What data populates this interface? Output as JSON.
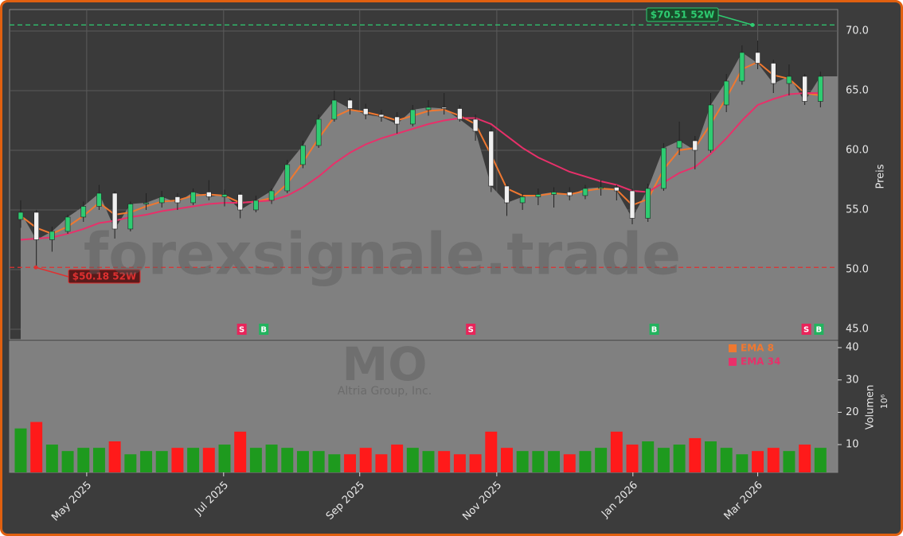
{
  "chart_data": [
    {
      "type": "candlestick",
      "watermark": "forexsignale.trade",
      "categories": [
        null,
        null,
        null,
        null,
        null,
        null,
        null,
        null,
        null,
        null,
        null,
        null,
        null,
        null,
        null,
        null,
        null,
        null,
        null,
        null,
        null,
        null,
        null,
        null,
        null,
        null,
        null,
        null,
        null,
        null,
        null,
        null,
        null,
        null,
        null,
        null,
        null,
        null,
        null,
        null,
        null,
        null,
        null,
        null,
        null,
        null,
        null,
        null,
        null,
        null,
        null,
        null
      ],
      "xlim": [
        -0.71,
        52.1
      ],
      "open": [
        54.2,
        54.8,
        52.5,
        53.2,
        54.4,
        55.3,
        56.4,
        53.4,
        55.5,
        55.6,
        56.1,
        55.6,
        56.5,
        56.1,
        56.3,
        55.0,
        55.8,
        56.6,
        58.8,
        60.4,
        62.6,
        64.2,
        63.5,
        63.0,
        62.8,
        62.2,
        63.4,
        63.6,
        63.5,
        62.6,
        61.6,
        57.0,
        55.6,
        56.1,
        56.3,
        56.5,
        56.2,
        56.8,
        56.9,
        56.6,
        54.3,
        56.8,
        60.2,
        60.8,
        60.0,
        63.8,
        65.8,
        68.2,
        67.3,
        65.6,
        66.2,
        64.1
      ],
      "high": [
        55.8,
        55.0,
        53.6,
        54.6,
        55.7,
        57.1,
        56.6,
        55.7,
        56.4,
        56.6,
        56.4,
        56.8,
        57.5,
        56.7,
        56.5,
        56.2,
        56.8,
        59.2,
        60.8,
        63.0,
        65.0,
        64.4,
        63.9,
        63.4,
        63.2,
        63.8,
        64.2,
        64.8,
        63.8,
        63.0,
        62.0,
        57.2,
        56.4,
        56.8,
        56.9,
        56.9,
        57.1,
        57.5,
        57.1,
        56.8,
        57.2,
        60.6,
        62.4,
        61.2,
        64.8,
        66.4,
        68.8,
        69.2,
        67.6,
        67.2,
        66.4,
        66.6
      ],
      "low": [
        53.5,
        50.2,
        51.5,
        53.0,
        54.0,
        55.0,
        52.6,
        53.2,
        55.0,
        55.2,
        55.0,
        55.4,
        55.8,
        55.3,
        54.3,
        54.8,
        55.5,
        56.4,
        58.5,
        60.2,
        62.4,
        63.0,
        62.6,
        62.4,
        61.4,
        62.0,
        62.9,
        63.0,
        62.4,
        60.8,
        56.5,
        54.5,
        55.0,
        55.4,
        55.2,
        55.8,
        55.9,
        56.2,
        55.8,
        53.8,
        54.0,
        56.6,
        59.6,
        58.4,
        59.8,
        63.2,
        65.5,
        66.8,
        64.8,
        64.6,
        63.8,
        63.6
      ],
      "close": [
        54.8,
        52.5,
        53.2,
        54.4,
        55.3,
        56.4,
        53.4,
        55.5,
        55.6,
        56.1,
        55.6,
        56.5,
        56.1,
        56.3,
        55.0,
        55.8,
        56.6,
        58.8,
        60.4,
        62.6,
        64.2,
        63.5,
        63.0,
        62.8,
        62.2,
        63.4,
        63.6,
        63.5,
        62.6,
        61.6,
        57.0,
        55.6,
        56.1,
        56.3,
        56.5,
        56.2,
        56.8,
        56.9,
        56.6,
        54.3,
        56.8,
        60.2,
        60.8,
        60.0,
        63.8,
        65.8,
        68.2,
        67.3,
        65.6,
        66.2,
        64.1,
        66.2
      ],
      "up_color": "#2ecc71",
      "down_color": "#f0f0f0",
      "area_color": "#808080",
      "series": [
        {
          "name": "EMA 8",
          "color": "#f07830",
          "values": [
            54.5,
            53.5,
            53.0,
            53.6,
            54.5,
            55.6,
            54.6,
            54.8,
            55.3,
            55.7,
            55.8,
            56.2,
            56.3,
            56.2,
            55.6,
            55.7,
            56.0,
            57.2,
            59.0,
            61.0,
            62.8,
            63.4,
            63.2,
            62.9,
            62.5,
            62.9,
            63.3,
            63.4,
            62.9,
            62.2,
            59.6,
            56.8,
            56.2,
            56.2,
            56.4,
            56.3,
            56.6,
            56.8,
            56.7,
            55.4,
            55.9,
            58.4,
            60.0,
            60.2,
            62.2,
            64.4,
            66.8,
            67.4,
            66.3,
            66.0,
            64.8,
            64.6
          ]
        },
        {
          "name": "EMA 34",
          "color": "#e8306a",
          "values": [
            52.5,
            52.6,
            52.7,
            53.0,
            53.4,
            53.9,
            54.1,
            54.4,
            54.6,
            54.9,
            55.1,
            55.3,
            55.5,
            55.6,
            55.6,
            55.7,
            55.8,
            56.2,
            56.9,
            57.8,
            58.9,
            59.8,
            60.5,
            61.0,
            61.4,
            61.8,
            62.2,
            62.5,
            62.7,
            62.7,
            62.2,
            61.2,
            60.2,
            59.4,
            58.8,
            58.2,
            57.8,
            57.4,
            57.1,
            56.6,
            56.5,
            57.3,
            58.1,
            58.6,
            59.7,
            61.0,
            62.5,
            63.8,
            64.3,
            64.7,
            64.8,
            64.8
          ]
        }
      ],
      "references": [
        {
          "value": 70.51,
          "label": "$70.51 52W",
          "color": "#2ecc71"
        },
        {
          "value": 50.18,
          "label": "$50.18 52W",
          "color": "#e03030"
        }
      ],
      "signals": [
        {
          "label": "S",
          "x": 14.1,
          "color": "#e8245a"
        },
        {
          "label": "B",
          "x": 15.5,
          "color": "#22b35e"
        },
        {
          "label": "S",
          "x": 28.7,
          "color": "#e8245a"
        },
        {
          "label": "B",
          "x": 40.4,
          "color": "#22b35e"
        },
        {
          "label": "S",
          "x": 50.1,
          "color": "#e8245a"
        },
        {
          "label": "B",
          "x": 50.9,
          "color": "#22b35e"
        }
      ],
      "ylabel": "Preis",
      "ylim": [
        44.13,
        71.8
      ],
      "yticks": [
        {
          "value": 45,
          "label": "45.0"
        },
        {
          "value": 50,
          "label": "50.0"
        },
        {
          "value": 55,
          "label": "55.0"
        },
        {
          "value": 60,
          "label": "60.0"
        },
        {
          "value": 65,
          "label": "65.0"
        },
        {
          "value": 70,
          "label": "70.0"
        }
      ],
      "grid": true
    },
    {
      "type": "bar",
      "title": "MO",
      "subtitle": "Altria Group, Inc.",
      "values": [
        15,
        17,
        10,
        8,
        9,
        9,
        11,
        7,
        8,
        8,
        9,
        9,
        9,
        10,
        14,
        9,
        10,
        9,
        8,
        8,
        7,
        7,
        9,
        7,
        10,
        9,
        8,
        8,
        7,
        7,
        14,
        9,
        8,
        8,
        8,
        7,
        8,
        9,
        14,
        10,
        11,
        9,
        10,
        12,
        11,
        9,
        7,
        8,
        9,
        8,
        10,
        9
      ],
      "up_color": "#1e9a1e",
      "down_color": "#ff1a1a",
      "ylabel": "Volumen",
      "scale_label": "10⁶",
      "ylim": [
        1.4,
        42
      ],
      "yticks": [
        10,
        20,
        30,
        40
      ],
      "xlim": [
        -0.71,
        52.1
      ],
      "xticks": [
        {
          "value": 4.21,
          "label": "May 2025"
        },
        {
          "value": 12.94,
          "label": "Jul 2025"
        },
        {
          "value": 21.62,
          "label": "Sep 2025"
        },
        {
          "value": 30.36,
          "label": "Nov 2025"
        },
        {
          "value": 39.04,
          "label": "Jan 2026"
        },
        {
          "value": 47.0,
          "label": "Mar 2026"
        }
      ]
    }
  ]
}
